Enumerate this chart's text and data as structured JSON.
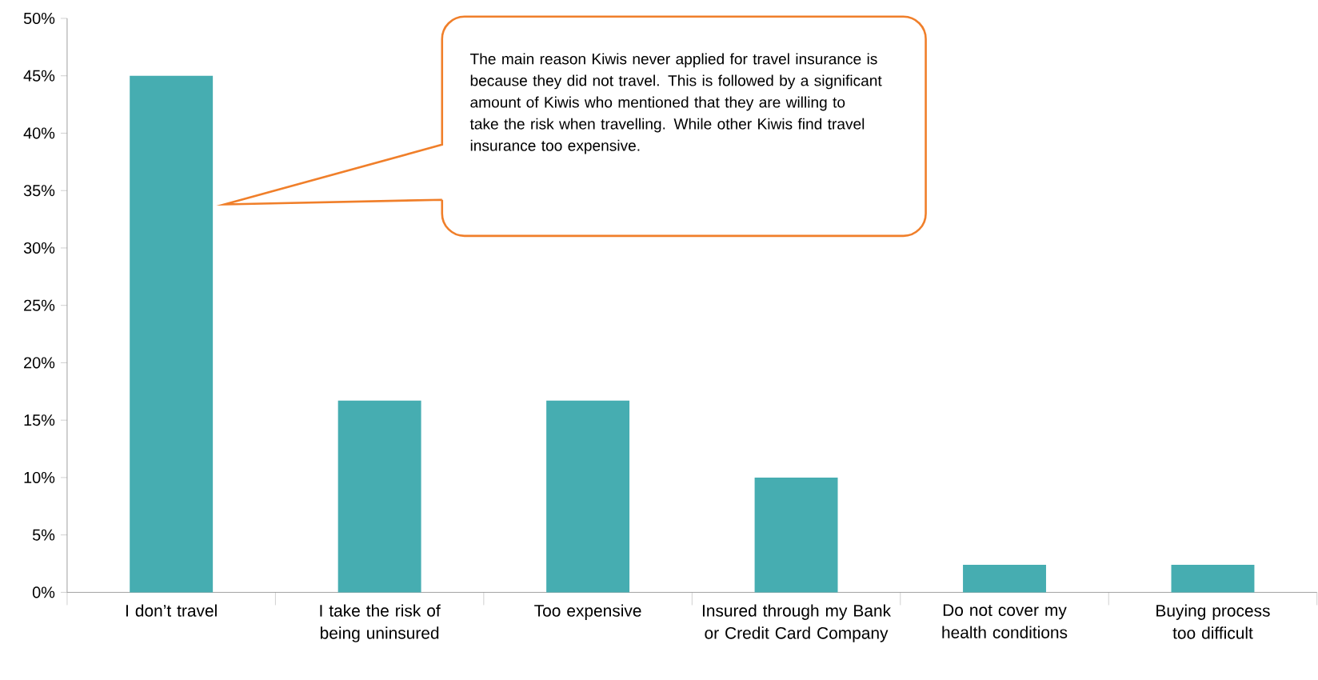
{
  "chart_data": {
    "type": "bar",
    "categories": [
      "I don’t travel",
      "I take the risk of being uninsured",
      "Too expensive",
      "Insured through my Bank or Credit Card Company",
      "Do not cover my health conditions",
      "Buying process too difficult"
    ],
    "values": [
      45,
      16.7,
      16.7,
      10,
      2.4,
      2.4
    ],
    "color": "#46adb1",
    "ylim": [
      0,
      50
    ],
    "yticks": [
      {
        "value": 0,
        "label": "0%"
      },
      {
        "value": 5,
        "label": "5%"
      },
      {
        "value": 10,
        "label": "10%"
      },
      {
        "value": 15,
        "label": "15%"
      },
      {
        "value": 20,
        "label": "20%"
      },
      {
        "value": 25,
        "label": "25%"
      },
      {
        "value": 30,
        "label": "30%"
      },
      {
        "value": 35,
        "label": "35%"
      },
      {
        "value": 40,
        "label": "40%"
      },
      {
        "value": 45,
        "label": "45%"
      },
      {
        "value": 50,
        "label": "50%"
      }
    ],
    "annotations": [
      "The main reason Kiwis never applied for travel insurance is because they did not travel. This is followed by a significant amount of Kiwis who mentioned that they are willing to take the risk when travelling. While other Kiwis find travel insurance too expensive."
    ]
  }
}
